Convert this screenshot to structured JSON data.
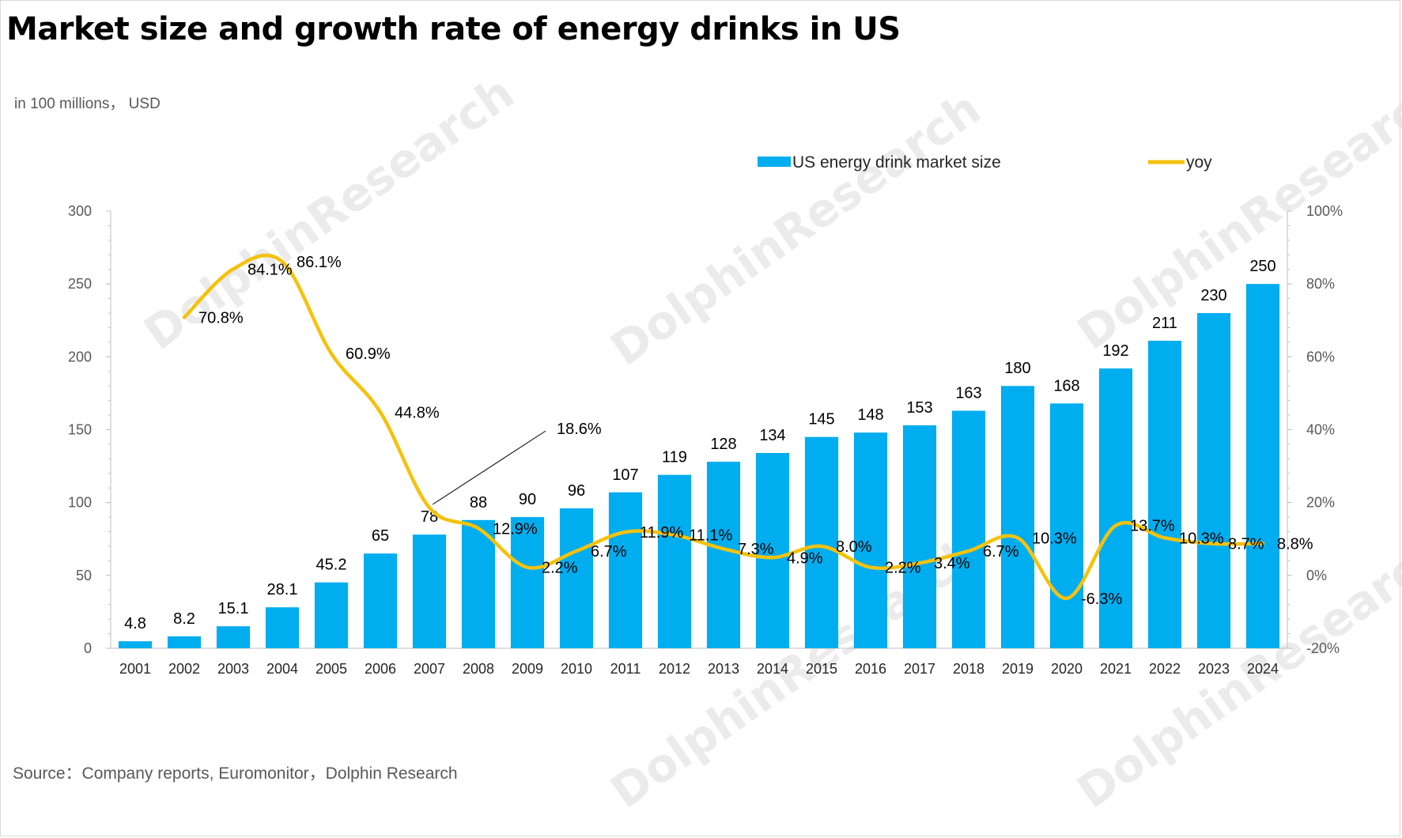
{
  "title": "Market size and growth rate of energy drinks in US",
  "unit_note": "in 100 millions， USD",
  "source": "Source：Company reports, Euromonitor，Dolphin Research",
  "watermark": "DolphinResearch",
  "colors": {
    "bar": "#00adef",
    "line": "#f4c20d",
    "axis": "#bfbfbf"
  },
  "chart_data": {
    "type": "bar",
    "categories": [
      "2001",
      "2002",
      "2003",
      "2004",
      "2005",
      "2006",
      "2007",
      "2008",
      "2009",
      "2010",
      "2011",
      "2012",
      "2013",
      "2014",
      "2015",
      "2016",
      "2017",
      "2018",
      "2019",
      "2020",
      "2021",
      "2022",
      "2023",
      "2024"
    ],
    "series": [
      {
        "name": "US energy drink market size",
        "type": "bar",
        "axis": "left",
        "values": [
          4.8,
          8.2,
          15.1,
          28.1,
          45.2,
          65,
          78,
          88,
          90,
          96,
          107,
          119,
          128,
          134,
          145,
          148,
          153,
          163,
          180,
          168,
          192,
          211,
          230,
          250
        ],
        "labels": [
          "4.8",
          "8.2",
          "15.1",
          "28.1",
          "45.2",
          "65",
          "78",
          "88",
          "90",
          "96",
          "107",
          "119",
          "128",
          "134",
          "145",
          "148",
          "153",
          "163",
          "180",
          "168",
          "192",
          "211",
          "230",
          "250"
        ]
      },
      {
        "name": "yoy",
        "type": "line",
        "axis": "right",
        "values": [
          null,
          70.8,
          84.1,
          86.1,
          60.9,
          44.8,
          18.6,
          12.9,
          2.2,
          6.7,
          11.9,
          11.1,
          7.3,
          4.9,
          8.0,
          2.2,
          3.4,
          6.7,
          10.3,
          -6.3,
          13.7,
          10.3,
          8.7,
          8.8
        ],
        "labels": [
          "",
          "70.8%",
          "84.1%",
          "86.1%",
          "60.9%",
          "44.8%",
          "18.6%",
          "12.9%",
          "2.2%",
          "6.7%",
          "11.9%",
          "11.1%",
          "7.3%",
          "4.9%",
          "8.0%",
          "2.2%",
          "3.4%",
          "6.7%",
          "10.3%",
          "-6.3%",
          "13.7%",
          "10.3%",
          "8.7%",
          "8.8%"
        ]
      }
    ],
    "y_left": {
      "ylim": [
        0,
        300
      ],
      "ticks": [
        "0",
        "50",
        "100",
        "150",
        "200",
        "250",
        "300"
      ]
    },
    "y_right": {
      "ylim": [
        -20,
        100
      ],
      "ticks": [
        "-20%",
        "0%",
        "20%",
        "40%",
        "60%",
        "80%",
        "100%"
      ]
    },
    "legend_position": "top-right",
    "grid": false
  }
}
